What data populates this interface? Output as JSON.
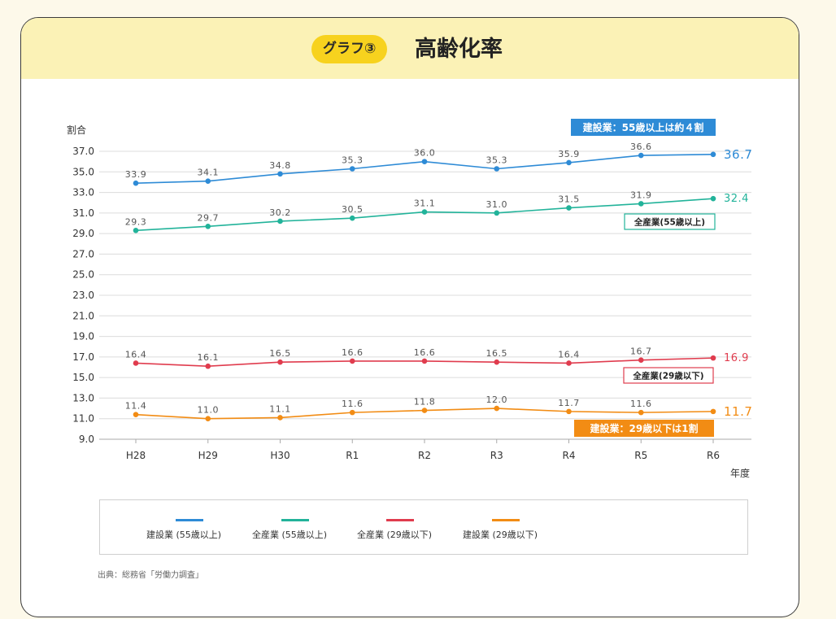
{
  "header": {
    "badge": "グラフ③",
    "title": "高齢化率"
  },
  "source": "出典：総務省「労働力調査」",
  "colors": {
    "blue": "#2e8bd6",
    "teal": "#22b39a",
    "red": "#e03c4e",
    "orange": "#f28c14",
    "grid": "#dcdcdc",
    "axis_text": "#333333"
  },
  "chart_data": {
    "type": "line",
    "ylabel": "割合",
    "xlabel": "年度",
    "x": [
      "H28",
      "H29",
      "H30",
      "R1",
      "R2",
      "R3",
      "R4",
      "R5",
      "R6"
    ],
    "ylim": [
      9.0,
      37.0
    ],
    "yticks": [
      "9.0",
      "11.0",
      "13.0",
      "15.0",
      "17.0",
      "19.0",
      "21.0",
      "23.0",
      "25.0",
      "27.0",
      "29.0",
      "31.0",
      "33.0",
      "35.0",
      "37.0"
    ],
    "grid": true,
    "legend_position": "bottom",
    "series": [
      {
        "name": "建設業 (55歳以上)",
        "color": "#2e8bd6",
        "values": [
          33.9,
          34.1,
          34.8,
          35.3,
          36.0,
          35.3,
          35.9,
          36.6,
          36.7
        ],
        "labels": [
          "33.9",
          "34.1",
          "34.8",
          "35.3",
          "36.0",
          "35.3",
          "35.9",
          "36.6",
          "36.7"
        ]
      },
      {
        "name": "全産業 (55歳以上)",
        "color": "#22b39a",
        "values": [
          29.3,
          29.7,
          30.2,
          30.5,
          31.1,
          31.0,
          31.5,
          31.9,
          32.4
        ],
        "labels": [
          "29.3",
          "29.7",
          "30.2",
          "30.5",
          "31.1",
          "31.0",
          "31.5",
          "31.9",
          "32.4"
        ]
      },
      {
        "name": "全産業 (29歳以下)",
        "color": "#e03c4e",
        "values": [
          16.4,
          16.1,
          16.5,
          16.6,
          16.6,
          16.5,
          16.4,
          16.7,
          16.9
        ],
        "labels": [
          "16.4",
          "16.1",
          "16.5",
          "16.6",
          "16.6",
          "16.5",
          "16.4",
          "16.7",
          "16.9"
        ]
      },
      {
        "name": "建設業 (29歳以下)",
        "color": "#f28c14",
        "values": [
          11.4,
          11.0,
          11.1,
          11.6,
          11.8,
          12.0,
          11.7,
          11.6,
          11.7
        ],
        "labels": [
          "11.4",
          "11.0",
          "11.1",
          "11.6",
          "11.8",
          "12.0",
          "11.7",
          "11.6",
          "11.7"
        ]
      }
    ],
    "annotations": [
      {
        "text": "建設業：55歳以上は約４割",
        "style": "filled",
        "color": "#2e8bd6"
      },
      {
        "text": "全産業(55歳以上)",
        "style": "outline",
        "color": "#22b39a"
      },
      {
        "text": "全産業(29歳以下)",
        "style": "outline",
        "color": "#e03c4e"
      },
      {
        "text": "建設業：29歳以下は1割",
        "style": "filled",
        "color": "#f28c14"
      }
    ]
  }
}
